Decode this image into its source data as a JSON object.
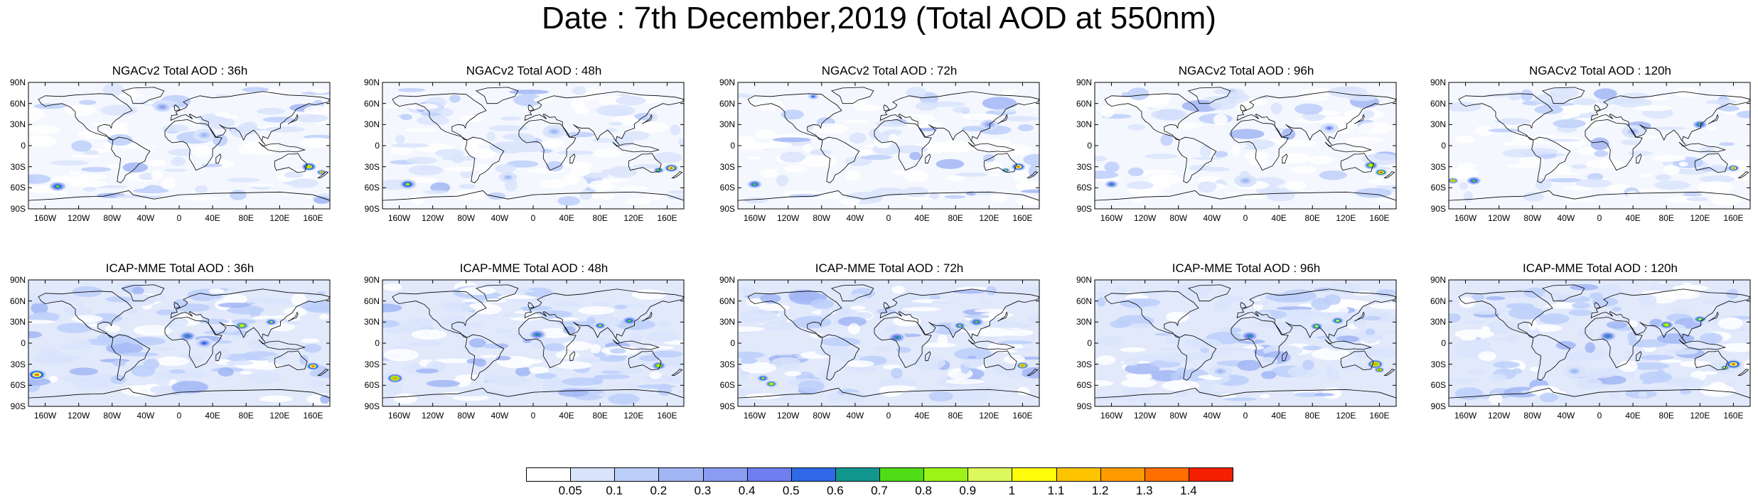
{
  "title": "Date : 7th December,2019 (Total AOD at 550nm)",
  "panels": [
    {
      "title": "NGACv2 Total AOD : 36h",
      "model": "NGACv2",
      "lead": "36h"
    },
    {
      "title": "NGACv2 Total AOD : 48h",
      "model": "NGACv2",
      "lead": "48h"
    },
    {
      "title": "NGACv2 Total AOD : 72h",
      "model": "NGACv2",
      "lead": "72h"
    },
    {
      "title": "NGACv2 Total AOD : 96h",
      "model": "NGACv2",
      "lead": "96h"
    },
    {
      "title": "NGACv2 Total AOD : 120h",
      "model": "NGACv2",
      "lead": "120h"
    },
    {
      "title": "ICAP-MME Total AOD : 36h",
      "model": "ICAP-MME",
      "lead": "36h"
    },
    {
      "title": "ICAP-MME Total AOD : 48h",
      "model": "ICAP-MME",
      "lead": "48h"
    },
    {
      "title": "ICAP-MME Total AOD : 72h",
      "model": "ICAP-MME",
      "lead": "72h"
    },
    {
      "title": "ICAP-MME Total AOD : 96h",
      "model": "ICAP-MME",
      "lead": "96h"
    },
    {
      "title": "ICAP-MME Total AOD : 120h",
      "model": "ICAP-MME",
      "lead": "120h"
    }
  ],
  "lat_labels": [
    "90N",
    "60N",
    "30N",
    "0",
    "30S",
    "60S",
    "90S"
  ],
  "lat_values": [
    90,
    60,
    30,
    0,
    -30,
    -60,
    -90
  ],
  "lon_labels": [
    "160W",
    "120W",
    "80W",
    "40W",
    "0",
    "40E",
    "80E",
    "120E",
    "160E"
  ],
  "lon_values": [
    -160,
    -120,
    -80,
    -40,
    0,
    40,
    80,
    120,
    160
  ],
  "colorbar": {
    "labels": [
      "0.05",
      "0.1",
      "0.2",
      "0.3",
      "0.4",
      "0.5",
      "0.6",
      "0.7",
      "0.8",
      "0.9",
      "1",
      "1.1",
      "1.2",
      "1.3",
      "1.4"
    ],
    "colors": [
      "#ffffff",
      "#d9e4fb",
      "#bccffa",
      "#a2b6f5",
      "#8a9cf2",
      "#6f7ff0",
      "#2f69e8",
      "#12978f",
      "#4fdd16",
      "#9cf317",
      "#ddf85a",
      "#fffb09",
      "#ffc400",
      "#ff9b00",
      "#ff6f00",
      "#f31f00"
    ]
  },
  "colors": {
    "background_aod": "#e1e9fb",
    "land_outline": "#000000"
  }
}
